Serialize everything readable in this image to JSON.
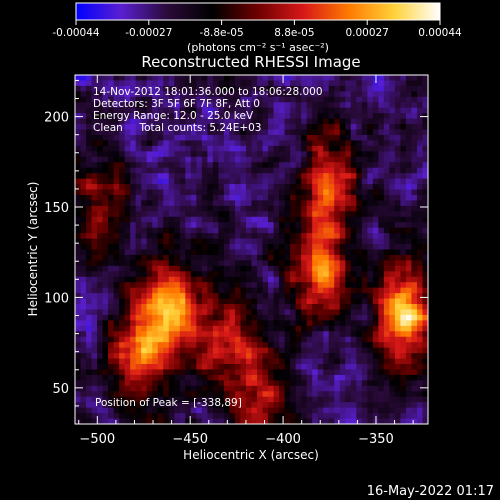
{
  "chart_data": {
    "type": "heatmap",
    "title": "Reconstructed RHESSI Image",
    "xlabel": "Heliocentric X (arcsec)",
    "ylabel": "Heliocentric Y (arcsec)",
    "xlim": [
      -512,
      -322
    ],
    "ylim": [
      30,
      223
    ],
    "xticks": [
      -500,
      -450,
      -400,
      -350
    ],
    "yticks": [
      50,
      100,
      150,
      200
    ],
    "colorbar": {
      "min": -0.00044,
      "max": 0.00044,
      "ticks": [
        "-0.00044",
        "-0.00027",
        "-8.8e-05",
        "8.8e-05",
        "0.00027",
        "0.00044"
      ],
      "unit_label": "(photons cm⁻² s⁻¹ asec⁻²)",
      "colormap": [
        "#0000ff",
        "#5a1fd0",
        "#2a0a3a",
        "#000000",
        "#6e0000",
        "#d81818",
        "#ff7a00",
        "#ffd23a",
        "#ffffff"
      ]
    },
    "info_lines": [
      "14-Nov-2012 18:01:36.000 to 18:06:28.000",
      "Detectors: 3F 5F 6F 7F 8F, Att 0",
      "Energy Range: 12.0 - 25.0 keV",
      "Clean     Total counts: 5.24E+03"
    ],
    "peak_label": "Position of Peak = [-338,89]",
    "sources": [
      {
        "x": -335,
        "y": 90,
        "value": 1.0
      },
      {
        "x": -460,
        "y": 95,
        "value": 0.85
      },
      {
        "x": -478,
        "y": 70,
        "value": 0.7
      },
      {
        "x": -380,
        "y": 115,
        "value": 0.8
      },
      {
        "x": -375,
        "y": 165,
        "value": 0.65
      },
      {
        "x": -500,
        "y": 150,
        "value": 0.55
      },
      {
        "x": -430,
        "y": 75,
        "value": 0.6
      },
      {
        "x": -410,
        "y": 45,
        "value": 0.5
      }
    ]
  },
  "footer": {
    "timestamp": "16-May-2022 01:17"
  }
}
